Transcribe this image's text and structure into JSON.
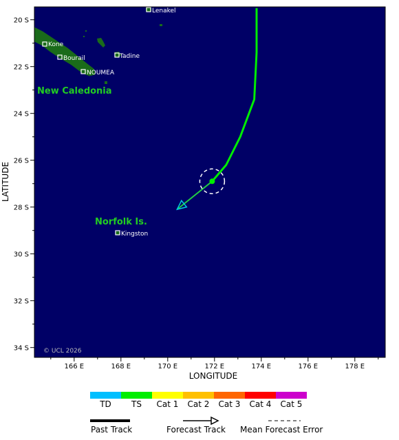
{
  "map": {
    "latitude_label": "LATITUDE",
    "longitude_label": "LONGITUDE",
    "lat_ticks": [
      "20 S",
      "22 S",
      "24 S",
      "26 S",
      "28 S",
      "30 S",
      "32 S",
      "34 S"
    ],
    "lon_ticks": [
      "166 E",
      "168 E",
      "170 E",
      "172 E",
      "174 E",
      "176 E",
      "178 E"
    ],
    "copyright": "© UCL 2026",
    "ocean_color": "#000066",
    "land_color": "#1a6b1a"
  },
  "regions": [
    {
      "name": "New Caledonia"
    },
    {
      "name": "Norfolk Is."
    }
  ],
  "places": [
    {
      "name": "Lenakel"
    },
    {
      "name": "Kone"
    },
    {
      "name": "Tadine"
    },
    {
      "name": "Bourail"
    },
    {
      "name": "NOUMEA"
    },
    {
      "name": "Kingston"
    }
  ],
  "storm": {
    "past_track": [
      [
        -19.5,
        173.8
      ],
      [
        -21.4,
        173.8
      ],
      [
        -23.4,
        173.7
      ],
      [
        -25.0,
        173.1
      ],
      [
        -26.2,
        172.5
      ],
      [
        -26.9,
        171.9
      ]
    ],
    "forecast_track": [
      [
        -26.9,
        171.9
      ],
      [
        -28.1,
        170.4
      ]
    ],
    "current_position": [
      -26.9,
      171.9
    ],
    "track_color": "#00ee00",
    "forecast_color": "#22cc44",
    "arrow_color": "#00ccdd"
  },
  "legend": {
    "scale": [
      {
        "label": "TD",
        "color": "#00bfff"
      },
      {
        "label": "TS",
        "color": "#00ee00"
      },
      {
        "label": "Cat 1",
        "color": "#ffff00"
      },
      {
        "label": "Cat 2",
        "color": "#ffc000"
      },
      {
        "label": "Cat 3",
        "color": "#ff6600"
      },
      {
        "label": "Cat 4",
        "color": "#ff0000"
      },
      {
        "label": "Cat 5",
        "color": "#cc00cc"
      }
    ],
    "past_track": "Past Track",
    "forecast_track": "Forecast Track",
    "mean_error": "Mean Forecast Error"
  }
}
